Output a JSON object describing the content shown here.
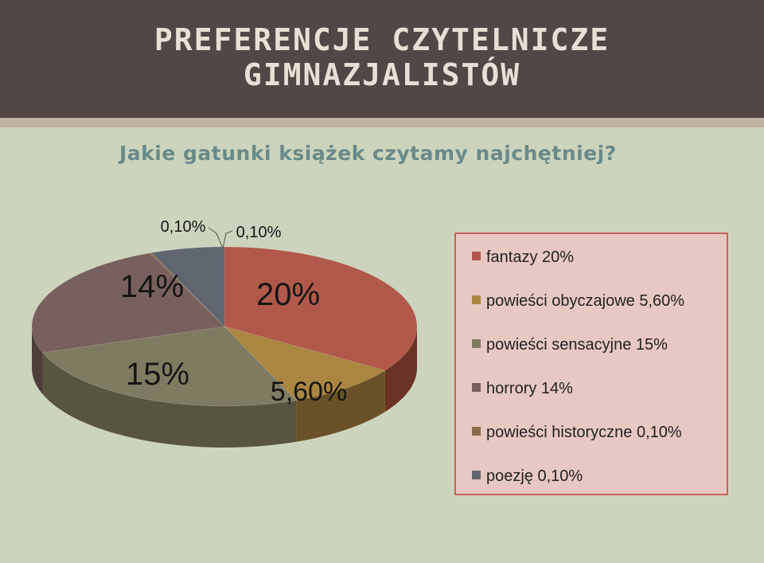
{
  "title": {
    "line1": "PREFERENCJE CZYTELNICZE",
    "line2": "GIMNAZJALISTÓW"
  },
  "subtitle": "Jakie gatunki książek  czytamy najchętniej?",
  "chart_data": {
    "type": "pie",
    "title": "",
    "slices": [
      {
        "name": "fantazy",
        "label": "20%",
        "legend": "fantazy 20%",
        "value": 20,
        "color": "#b0594a",
        "side": "#6b3226"
      },
      {
        "name": "powieści obyczajowe",
        "label": "5,60%",
        "legend": "powieści obyczajowe 5,60%",
        "value": 5.6,
        "color": "#ab8642",
        "side": "#6a5127"
      },
      {
        "name": "powieści sensacyjne",
        "label": "15%",
        "legend": "powieści sensacyjne 15%",
        "value": 15,
        "color": "#7f7b61",
        "side": "#58553f"
      },
      {
        "name": "horrory",
        "label": "14%",
        "legend": "horrory 14%",
        "value": 14,
        "color": "#77605d",
        "side": "#4d3d3b"
      },
      {
        "name": "powieści historyczne",
        "label": "0,10%",
        "legend": "powieści historyczne 0,10%",
        "value": 0.1,
        "color": "#8a6a4a",
        "side": "#5a4530"
      },
      {
        "name": "poezję",
        "label": "0,10%",
        "legend": "poezję 0,10%",
        "value": 0.1,
        "color": "#5f6670",
        "side": "#3f444b"
      }
    ],
    "legend_position": "right"
  }
}
